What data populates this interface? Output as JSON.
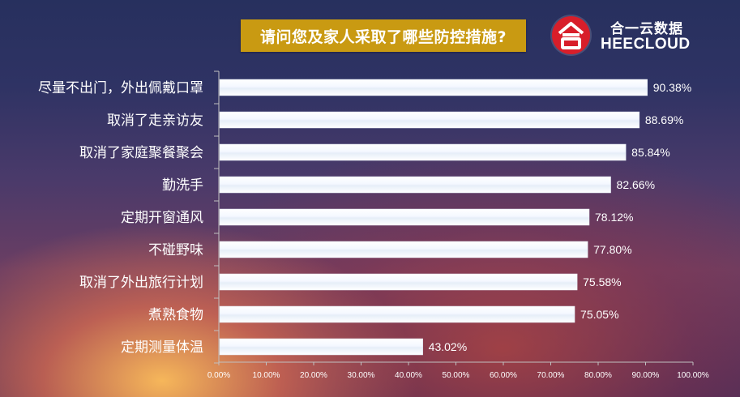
{
  "header": {
    "title": "请问您及家人采取了哪些防控措施?"
  },
  "logo": {
    "cn_name": "合一云数据",
    "en_name": "HEECLOUD"
  },
  "colors": {
    "title_bg": "#c99a12",
    "logo_red": "#d81e2a",
    "bar_fill": "#ffffff",
    "axis_line": "#c0c0c0"
  },
  "chart_data": {
    "type": "bar",
    "orientation": "horizontal",
    "title": "请问您及家人采取了哪些防控措施?",
    "categories": [
      "尽量不出门，外出佩戴口罩",
      "取消了走亲访友",
      "取消了家庭聚餐聚会",
      "勤洗手",
      "定期开窗通风",
      "不碰野味",
      "取消了外出旅行计划",
      "煮熟食物",
      "定期测量体温"
    ],
    "values": [
      90.38,
      88.69,
      85.84,
      82.66,
      78.12,
      77.8,
      75.58,
      75.05,
      43.02
    ],
    "value_labels": [
      "90.38%",
      "88.69%",
      "85.84%",
      "82.66%",
      "78.12%",
      "77.80%",
      "75.58%",
      "75.05%",
      "43.02%"
    ],
    "xlim": [
      0,
      100
    ],
    "x_ticks": [
      "0.00%",
      "10.00%",
      "20.00%",
      "30.00%",
      "40.00%",
      "50.00%",
      "60.00%",
      "70.00%",
      "80.00%",
      "90.00%",
      "100.00%"
    ],
    "xlabel": "",
    "ylabel": "",
    "grid": false,
    "legend": "none"
  }
}
